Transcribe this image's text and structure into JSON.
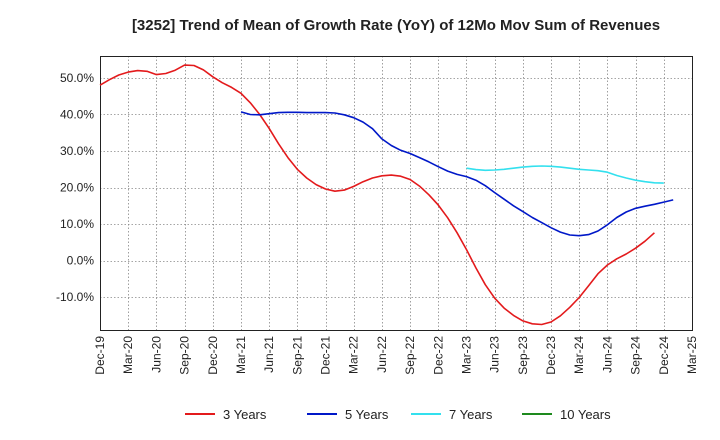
{
  "chart_data": {
    "type": "line",
    "title": "[3252]  Trend of Mean of Growth Rate (YoY) of 12Mo Mov Sum of Revenues",
    "xlabel": "",
    "ylabel": "",
    "ylim": [
      -19,
      56
    ],
    "grid": true,
    "legend_position": "bottom",
    "y_ticks": [
      50,
      40,
      30,
      20,
      10,
      0,
      -10
    ],
    "y_tick_labels": [
      "50.0%",
      "40.0%",
      "30.0%",
      "20.0%",
      "10.0%",
      "0.0%",
      "-10.0%"
    ],
    "x_tick_labels": [
      "Dec-19",
      "Mar-20",
      "Jun-20",
      "Sep-20",
      "Dec-20",
      "Mar-21",
      "Jun-21",
      "Sep-21",
      "Dec-21",
      "Mar-22",
      "Jun-22",
      "Sep-22",
      "Dec-22",
      "Mar-23",
      "Jun-23",
      "Sep-23",
      "Dec-23",
      "Mar-24",
      "Jun-24",
      "Sep-24",
      "Dec-24",
      "Mar-25"
    ],
    "series": [
      {
        "name": "3 Years",
        "color": "#e31a1c",
        "start_index": 0,
        "values": [
          48.0,
          49.5,
          50.8,
          51.6,
          52.0,
          51.8,
          50.9,
          51.2,
          52.1,
          53.5,
          53.4,
          52.2,
          50.3,
          48.7,
          47.4,
          45.8,
          43.2,
          40.0,
          36.2,
          32.0,
          28.2,
          25.0,
          22.6,
          20.8,
          19.6,
          19.0,
          19.3,
          20.3,
          21.6,
          22.6,
          23.2,
          23.4,
          23.1,
          22.2,
          20.4,
          18.0,
          15.2,
          11.7,
          7.6,
          3.0,
          -2.0,
          -6.6,
          -10.3,
          -13.0,
          -15.0,
          -16.5,
          -17.3,
          -17.5,
          -16.8,
          -15.1,
          -12.8,
          -10.1,
          -6.9,
          -3.6,
          -1.2,
          0.5,
          1.8,
          3.4,
          5.3,
          7.6
        ]
      },
      {
        "name": "5 Years",
        "color": "#0018c8",
        "start_index": 15,
        "values": [
          40.7,
          40.0,
          39.9,
          40.2,
          40.5,
          40.6,
          40.6,
          40.5,
          40.5,
          40.5,
          40.4,
          39.9,
          39.1,
          37.9,
          36.1,
          33.3,
          31.5,
          30.2,
          29.3,
          28.2,
          27.0,
          25.7,
          24.5,
          23.6,
          23.0,
          22.0,
          20.5,
          18.6,
          16.8,
          15.0,
          13.4,
          11.8,
          10.4,
          9.0,
          7.8,
          7.0,
          6.8,
          7.1,
          8.1,
          9.8,
          11.8,
          13.3,
          14.3,
          14.9,
          15.4,
          16.0,
          16.6
        ]
      },
      {
        "name": "7 Years",
        "color": "#33e0ee",
        "start_index": 39,
        "values": [
          25.3,
          24.9,
          24.7,
          24.8,
          25.0,
          25.3,
          25.6,
          25.8,
          25.9,
          25.8,
          25.6,
          25.3,
          25.0,
          24.8,
          24.6,
          24.2,
          23.3,
          22.6,
          22.0,
          21.6,
          21.3,
          21.2
        ]
      },
      {
        "name": "10 Years",
        "color": "#1e8a1e",
        "start_index": 0,
        "values": []
      }
    ]
  }
}
